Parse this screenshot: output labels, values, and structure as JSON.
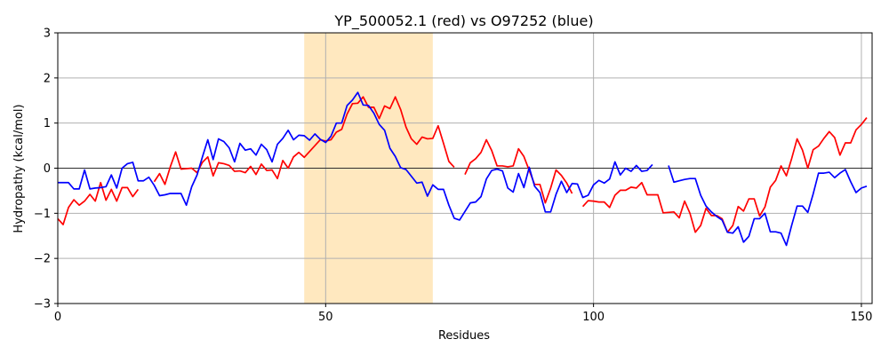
{
  "chart_data": {
    "type": "line",
    "title": "YP_500052.1 (red) vs O97252 (blue)",
    "xlabel": "Residues",
    "ylabel": "Hydropathy (kcal/mol)",
    "xlim": [
      0,
      152
    ],
    "ylim": [
      -3,
      3
    ],
    "xticks": [
      0,
      50,
      100,
      150
    ],
    "yticks": [
      -3,
      -2,
      -1,
      0,
      1,
      2,
      3
    ],
    "grid": true,
    "highlight_region": {
      "x_start": 46,
      "x_end": 70,
      "color": "#ffe8bf"
    },
    "reference_line_y": 0,
    "series": [
      {
        "color": "#ff0000",
        "segments": [
          {
            "x_start": 0,
            "values": [
              -1.12,
              -1.25,
              -0.87,
              -0.7,
              -0.82,
              -0.73,
              -0.58,
              -0.73,
              -0.32,
              -0.71,
              -0.47,
              -0.73,
              -0.43,
              -0.43,
              -0.63,
              -0.47
            ]
          },
          {
            "x_start": 18,
            "values": [
              -0.3,
              -0.12,
              -0.36,
              0.03,
              0.36,
              -0.02,
              -0.01,
              0.0,
              -0.1,
              0.13,
              0.25,
              -0.17,
              0.12,
              0.1,
              0.06,
              -0.07,
              -0.06,
              -0.1,
              0.04,
              -0.14,
              0.09,
              -0.05,
              -0.04,
              -0.23,
              0.17,
              0.0,
              0.25,
              0.35,
              0.24,
              0.37,
              0.5,
              0.63,
              0.6,
              0.63,
              0.8,
              0.86,
              1.2,
              1.43,
              1.44,
              1.58,
              1.35,
              1.35,
              1.1,
              1.38,
              1.32,
              1.58,
              1.3,
              0.91,
              0.65,
              0.53,
              0.69,
              0.65,
              0.66,
              0.94,
              0.55,
              0.15,
              0.02
            ]
          },
          {
            "x_start": 76,
            "values": [
              -0.14,
              0.12,
              0.21,
              0.35,
              0.63,
              0.39,
              0.05,
              0.05,
              0.03,
              0.05,
              0.43,
              0.26,
              -0.05,
              -0.36,
              -0.36,
              -0.77,
              -0.44,
              -0.04,
              -0.16,
              -0.33,
              -0.56
            ]
          },
          {
            "x_start": 98,
            "values": [
              -0.85,
              -0.72,
              -0.73,
              -0.75,
              -0.75,
              -0.87,
              -0.6,
              -0.49,
              -0.49,
              -0.42,
              -0.44,
              -0.32,
              -0.59,
              -0.59,
              -0.59,
              -0.99,
              -0.98,
              -0.97,
              -1.1,
              -0.73,
              -1.0,
              -1.42,
              -1.27,
              -0.89,
              -1.05,
              -1.05,
              -1.12,
              -1.42,
              -1.27,
              -0.85,
              -0.95,
              -0.68,
              -0.68,
              -1.06,
              -0.86,
              -0.42,
              -0.27,
              0.05,
              -0.17,
              0.22,
              0.65,
              0.4,
              0.0,
              0.41,
              0.49,
              0.66,
              0.81,
              0.68,
              0.29,
              0.56,
              0.56,
              0.85,
              0.97,
              1.12
            ]
          }
        ]
      },
      {
        "color": "#0000ff",
        "segments": [
          {
            "x_start": 0,
            "values": [
              -0.32,
              -0.32,
              -0.32,
              -0.46,
              -0.46,
              -0.04,
              -0.46,
              -0.44,
              -0.43,
              -0.41,
              -0.15,
              -0.44,
              0.0,
              0.1,
              0.13,
              -0.28,
              -0.28,
              -0.2,
              -0.38,
              -0.61,
              -0.59,
              -0.56,
              -0.56,
              -0.56,
              -0.82,
              -0.41,
              -0.15,
              0.25,
              0.63,
              0.19,
              0.65,
              0.59,
              0.45,
              0.14,
              0.55,
              0.4,
              0.43,
              0.29,
              0.53,
              0.41,
              0.14,
              0.53,
              0.66,
              0.84,
              0.63,
              0.73,
              0.72,
              0.62,
              0.76,
              0.64,
              0.57,
              0.71,
              1.0,
              1.0,
              1.39,
              1.51,
              1.68,
              1.4,
              1.39,
              1.22,
              0.97,
              0.84,
              0.44,
              0.26,
              0.01,
              -0.03,
              -0.18,
              -0.33,
              -0.31,
              -0.62,
              -0.37,
              -0.47,
              -0.47,
              -0.82,
              -1.11,
              -1.15,
              -0.96,
              -0.77,
              -0.75,
              -0.63,
              -0.24,
              -0.05,
              -0.02,
              -0.06,
              -0.44,
              -0.53,
              -0.12,
              -0.43,
              0.02,
              -0.4,
              -0.54,
              -0.97,
              -0.97,
              -0.58,
              -0.29,
              -0.54,
              -0.34,
              -0.35,
              -0.65,
              -0.6,
              -0.37,
              -0.27,
              -0.33,
              -0.24,
              0.14,
              -0.15,
              0.0,
              -0.07,
              0.06,
              -0.07,
              -0.05,
              0.08
            ]
          },
          {
            "x_start": 114,
            "values": [
              0.06,
              -0.31,
              -0.28,
              -0.25,
              -0.23,
              -0.23,
              -0.6,
              -0.84,
              -0.97,
              -1.07,
              -1.15,
              -1.42,
              -1.44,
              -1.3,
              -1.64,
              -1.51,
              -1.12,
              -1.12,
              -1.0,
              -1.41,
              -1.41,
              -1.44,
              -1.71,
              -1.26,
              -0.84,
              -0.84,
              -0.98,
              -0.57,
              -0.11,
              -0.11,
              -0.09,
              -0.21,
              -0.11,
              -0.03,
              -0.3,
              -0.54,
              -0.44,
              -0.4
            ]
          }
        ]
      }
    ]
  }
}
